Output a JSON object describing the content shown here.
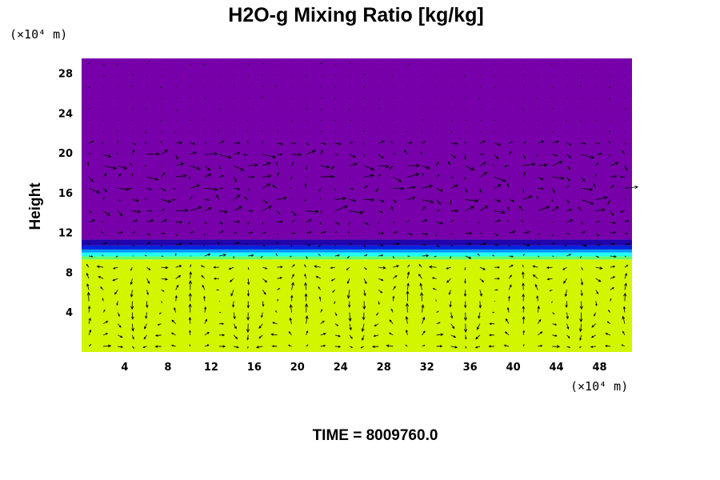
{
  "chart_data": {
    "type": "heatmap",
    "title": "H2O-g Mixing Ratio [kg/kg]",
    "xlabel": "",
    "ylabel": "Height",
    "x_unit": "(×10⁴ m)",
    "y_unit": "(×10⁴ m)",
    "xlim": [
      0,
      51
    ],
    "ylim": [
      0,
      29.5
    ],
    "x_ticks": [
      4,
      8,
      12,
      16,
      20,
      24,
      28,
      32,
      36,
      40,
      44,
      48
    ],
    "y_ticks": [
      4,
      8,
      12,
      16,
      20,
      24,
      28
    ],
    "x_tick_labels": [
      "4",
      "8",
      "12",
      "16",
      "20",
      "24",
      "28",
      "32",
      "36",
      "40",
      "44",
      "48"
    ],
    "y_tick_labels": [
      "4",
      "8",
      "12",
      "16",
      "20",
      "24",
      "28"
    ],
    "field_bands": [
      {
        "y0": 0,
        "y1": 9.3,
        "color": "#d2f500"
      },
      {
        "y0": 9.3,
        "y1": 9.6,
        "color": "#66ff66"
      },
      {
        "y0": 9.6,
        "y1": 10.0,
        "color": "#22ffee"
      },
      {
        "y0": 10.0,
        "y1": 10.3,
        "color": "#0099ff"
      },
      {
        "y0": 10.3,
        "y1": 10.7,
        "color": "#0022dd"
      },
      {
        "y0": 10.7,
        "y1": 11.3,
        "color": "#2200aa"
      },
      {
        "y0": 11.3,
        "y1": 29.5,
        "color": "#7700aa"
      }
    ],
    "vector_field": "wind vectors overlaid",
    "grid": false,
    "legend": "none"
  },
  "footer": {
    "time_label": "TIME = 8009760.0"
  }
}
